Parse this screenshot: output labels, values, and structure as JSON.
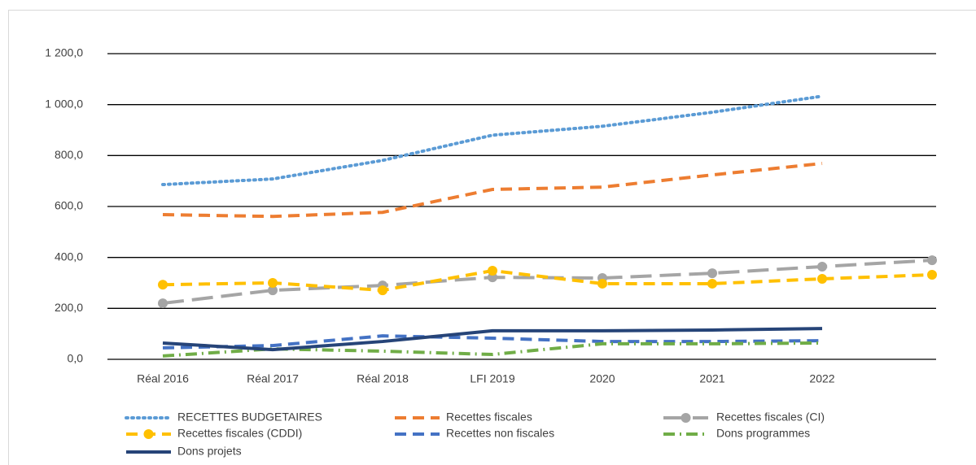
{
  "chart_data": {
    "type": "line",
    "categories": [
      "Réal 2016",
      "Réal 2017",
      "Réal 2018",
      "LFI 2019",
      "2020",
      "2021",
      "2022",
      null
    ],
    "ylim": [
      0,
      1200
    ],
    "yticks": [
      {
        "value": 0,
        "label": "0,0"
      },
      {
        "value": 200,
        "label": "200,0"
      },
      {
        "value": 400,
        "label": "400,0"
      },
      {
        "value": 600,
        "label": "600,0"
      },
      {
        "value": 800,
        "label": "800,0"
      },
      {
        "value": 1000,
        "label": "1 000,0"
      },
      {
        "value": 1200,
        "label": "1 200,0"
      }
    ],
    "grid": true,
    "legend": "bottom",
    "series": [
      {
        "name": "RECETTES BUDGETAIRES",
        "color": "#5b9bd5",
        "dash": "dotted",
        "marker": false,
        "values": [
          686,
          708,
          781,
          880,
          915,
          970,
          1033,
          null
        ]
      },
      {
        "name": "Recettes fiscales",
        "color": "#ed7d31",
        "dash": "dashed",
        "marker": false,
        "values": [
          568,
          561,
          577,
          667,
          676,
          724,
          769,
          null
        ]
      },
      {
        "name": "Recettes fiscales (CI)",
        "color": "#a5a5a5",
        "dash": "longdash",
        "marker": true,
        "values": [
          220,
          271,
          290,
          322,
          319,
          338,
          364,
          389
        ]
      },
      {
        "name": "Recettes fiscales (CDDI)",
        "color": "#ffc000",
        "dash": "dashed",
        "marker": true,
        "values": [
          293,
          300,
          271,
          348,
          297,
          297,
          316,
          332
        ]
      },
      {
        "name": "Recettes non fiscales",
        "color": "#4472c4",
        "dash": "dashed",
        "marker": false,
        "values": [
          45,
          54,
          92,
          83,
          70,
          70,
          73,
          null
        ]
      },
      {
        "name": "Dons programmes",
        "color": "#70ad47",
        "dash": "dashdot",
        "marker": false,
        "values": [
          13,
          41,
          32,
          19,
          61,
          61,
          64,
          null
        ]
      },
      {
        "name": "Dons projets",
        "color": "#264478",
        "dash": "solid",
        "marker": false,
        "values": [
          64,
          38,
          70,
          112,
          112,
          115,
          121,
          null
        ]
      }
    ]
  }
}
